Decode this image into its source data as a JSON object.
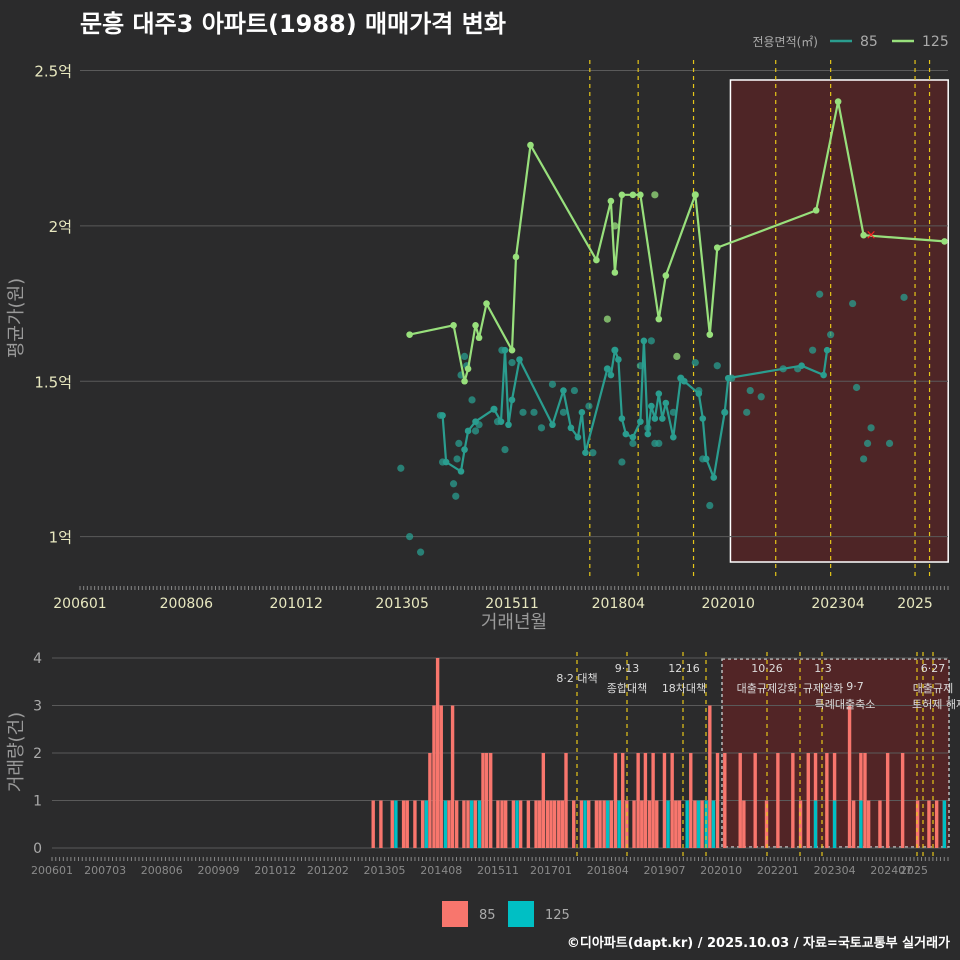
{
  "title": "문흥 대주3 아파트(1988) 매매가격 변화",
  "footer": "©디아파트(dapt.kr) / 2025.10.03 / 자료=국토교통부 실거래가",
  "colors": {
    "s85": "#2a9d8f",
    "s125": "#98e07c",
    "vol85": "#f8766d",
    "vol125": "#00bfc4",
    "policy": "#e6c619",
    "highlight": "#7a1f1f",
    "grid": "#5a5a5a",
    "bg": "#2b2b2c"
  },
  "chart_data": [
    {
      "type": "line",
      "title": "문흥 대주3 아파트(1988) 매매가격 변화",
      "xlabel": "거래년월",
      "ylabel": "평균가(원)",
      "xlim": [
        2006.0,
        2025.75
      ],
      "ylim": [
        0.87,
        2.55
      ],
      "x_ticks": [
        {
          "label": "200601",
          "x": 2006.0
        },
        {
          "label": "200806",
          "x": 2008.42
        },
        {
          "label": "201012",
          "x": 2010.92
        },
        {
          "label": "201305",
          "x": 2013.33
        },
        {
          "label": "201511",
          "x": 2015.83
        },
        {
          "label": "201804",
          "x": 2018.25
        },
        {
          "label": "202010",
          "x": 2020.75
        },
        {
          "label": "202304",
          "x": 2023.25
        },
        {
          "label": "2025",
          "x": 2025.0
        }
      ],
      "y_ticks": [
        {
          "label": "1억",
          "y": 1.0
        },
        {
          "label": "1.5억",
          "y": 1.5
        },
        {
          "label": "2억",
          "y": 2.0
        },
        {
          "label": "2.5억",
          "y": 2.5
        }
      ],
      "legend_title": "전용면적(㎡)",
      "legend": [
        "85",
        "125"
      ],
      "policy_lines": [
        2017.6,
        2018.7,
        2019.96,
        2021.83,
        2023.08,
        2025.0,
        2025.33
      ],
      "highlight_range": [
        2020.8,
        2025.8
      ],
      "marker": {
        "x": 2024.0,
        "y": 1.97,
        "symbol": "×"
      },
      "series": [
        {
          "name": "85",
          "line": [
            [
              2014.25,
              1.39
            ],
            [
              2014.33,
              1.24
            ],
            [
              2014.67,
              1.21
            ],
            [
              2014.75,
              1.28
            ],
            [
              2014.83,
              1.34
            ],
            [
              2015.0,
              1.37
            ],
            [
              2015.42,
              1.41
            ],
            [
              2015.58,
              1.37
            ],
            [
              2015.67,
              1.6
            ],
            [
              2015.75,
              1.36
            ],
            [
              2015.83,
              1.44
            ],
            [
              2016.0,
              1.57
            ],
            [
              2016.75,
              1.36
            ],
            [
              2017.0,
              1.47
            ],
            [
              2017.17,
              1.35
            ],
            [
              2017.33,
              1.32
            ],
            [
              2017.42,
              1.4
            ],
            [
              2017.5,
              1.27
            ],
            [
              2018.0,
              1.54
            ],
            [
              2018.08,
              1.52
            ],
            [
              2018.17,
              1.6
            ],
            [
              2018.25,
              1.57
            ],
            [
              2018.33,
              1.38
            ],
            [
              2018.42,
              1.33
            ],
            [
              2018.58,
              1.32
            ],
            [
              2018.75,
              1.37
            ],
            [
              2018.83,
              1.63
            ],
            [
              2018.92,
              1.33
            ],
            [
              2019.0,
              1.42
            ],
            [
              2019.08,
              1.38
            ],
            [
              2019.17,
              1.46
            ],
            [
              2019.25,
              1.38
            ],
            [
              2019.33,
              1.43
            ],
            [
              2019.5,
              1.32
            ],
            [
              2019.67,
              1.51
            ],
            [
              2019.75,
              1.5
            ],
            [
              2020.08,
              1.46
            ],
            [
              2020.17,
              1.38
            ],
            [
              2020.25,
              1.25
            ],
            [
              2020.42,
              1.19
            ],
            [
              2020.67,
              1.4
            ],
            [
              2020.75,
              1.51
            ],
            [
              2022.42,
              1.55
            ],
            [
              2022.92,
              1.52
            ],
            [
              2023.0,
              1.6
            ]
          ],
          "points": [
            [
              2013.3,
              1.22
            ],
            [
              2013.5,
              1.0
            ],
            [
              2013.75,
              0.95
            ],
            [
              2014.2,
              1.39
            ],
            [
              2014.25,
              1.24
            ],
            [
              2014.5,
              1.17
            ],
            [
              2014.55,
              1.13
            ],
            [
              2014.58,
              1.25
            ],
            [
              2014.62,
              1.3
            ],
            [
              2014.67,
              1.52
            ],
            [
              2014.75,
              1.58
            ],
            [
              2014.8,
              1.55
            ],
            [
              2014.92,
              1.44
            ],
            [
              2015.0,
              1.34
            ],
            [
              2015.08,
              1.36
            ],
            [
              2015.42,
              1.41
            ],
            [
              2015.5,
              1.37
            ],
            [
              2015.6,
              1.6
            ],
            [
              2015.67,
              1.28
            ],
            [
              2015.83,
              1.56
            ],
            [
              2016.08,
              1.4
            ],
            [
              2016.33,
              1.4
            ],
            [
              2016.5,
              1.35
            ],
            [
              2016.75,
              1.49
            ],
            [
              2017.0,
              1.4
            ],
            [
              2017.25,
              1.47
            ],
            [
              2017.58,
              1.42
            ],
            [
              2017.67,
              1.27
            ],
            [
              2018.0,
              1.54
            ],
            [
              2018.17,
              1.6
            ],
            [
              2018.33,
              1.24
            ],
            [
              2018.58,
              1.3
            ],
            [
              2018.75,
              1.55
            ],
            [
              2018.92,
              1.35
            ],
            [
              2019.0,
              1.63
            ],
            [
              2019.08,
              1.3
            ],
            [
              2019.17,
              1.3
            ],
            [
              2019.5,
              1.4
            ],
            [
              2019.67,
              1.51
            ],
            [
              2020.0,
              1.56
            ],
            [
              2020.08,
              1.47
            ],
            [
              2020.17,
              1.25
            ],
            [
              2020.33,
              1.1
            ],
            [
              2020.5,
              1.55
            ],
            [
              2020.67,
              1.4
            ],
            [
              2020.83,
              1.51
            ],
            [
              2021.17,
              1.4
            ],
            [
              2021.25,
              1.47
            ],
            [
              2021.5,
              1.45
            ],
            [
              2022.0,
              1.54
            ],
            [
              2022.33,
              1.54
            ],
            [
              2022.67,
              1.6
            ],
            [
              2022.83,
              1.78
            ],
            [
              2023.08,
              1.65
            ],
            [
              2023.58,
              1.75
            ],
            [
              2023.67,
              1.48
            ],
            [
              2023.83,
              1.25
            ],
            [
              2023.92,
              1.3
            ],
            [
              2024.0,
              1.35
            ],
            [
              2024.42,
              1.3
            ],
            [
              2024.75,
              1.77
            ]
          ]
        },
        {
          "name": "125",
          "line": [
            [
              2013.5,
              1.65
            ],
            [
              2014.5,
              1.68
            ],
            [
              2014.75,
              1.5
            ],
            [
              2014.83,
              1.54
            ],
            [
              2015.0,
              1.68
            ],
            [
              2015.08,
              1.64
            ],
            [
              2015.25,
              1.75
            ],
            [
              2015.83,
              1.6
            ],
            [
              2015.92,
              1.9
            ],
            [
              2016.25,
              2.26
            ],
            [
              2017.75,
              1.89
            ],
            [
              2018.08,
              2.08
            ],
            [
              2018.17,
              1.85
            ],
            [
              2018.33,
              2.1
            ],
            [
              2018.58,
              2.1
            ],
            [
              2018.75,
              2.1
            ],
            [
              2019.17,
              1.7
            ],
            [
              2019.33,
              1.84
            ],
            [
              2020.0,
              2.1
            ],
            [
              2020.33,
              1.65
            ],
            [
              2020.5,
              1.93
            ],
            [
              2022.75,
              2.05
            ],
            [
              2023.25,
              2.4
            ],
            [
              2023.83,
              1.97
            ],
            [
              2025.67,
              1.95
            ]
          ],
          "points": [
            [
              2018.0,
              1.7
            ],
            [
              2018.17,
              2.0
            ],
            [
              2019.08,
              2.1
            ],
            [
              2019.58,
              1.58
            ],
            [
              2020.0,
              2.1
            ]
          ]
        }
      ]
    },
    {
      "type": "bar",
      "ylabel": "거래량(건)",
      "ylim": [
        0,
        4
      ],
      "y_ticks": [
        "0",
        "1",
        "2",
        "3",
        "4"
      ],
      "x_ticks": [
        "200601",
        "200703",
        "200806",
        "200909",
        "201012",
        "201202",
        "201305",
        "201408",
        "201511",
        "201701",
        "201804",
        "201907",
        "202010",
        "202201",
        "202304",
        "202407",
        "2025"
      ],
      "legend": [
        "85",
        "125"
      ],
      "policy_annotations": [
        {
          "date": "",
          "label": "8·2 대책"
        },
        {
          "date": "9·13",
          "label": "종합대책"
        },
        {
          "date": "12·16",
          "label": "18차대책"
        },
        {
          "date": "10·26",
          "label": "대출규제강화"
        },
        {
          "date": "1·3",
          "label": "규제완화"
        },
        {
          "date": "9·7",
          "label": "특례대출축소"
        },
        {
          "date": "",
          "label": "토허제 해제"
        },
        {
          "date": "6·27",
          "label": "대출규제"
        }
      ],
      "bars85": [
        [
          2013.08,
          1
        ],
        [
          2013.25,
          1
        ],
        [
          2013.5,
          1
        ],
        [
          2013.75,
          1
        ],
        [
          2013.83,
          1
        ],
        [
          2014.0,
          1
        ],
        [
          2014.17,
          1
        ],
        [
          2014.33,
          2
        ],
        [
          2014.42,
          3
        ],
        [
          2014.5,
          4
        ],
        [
          2014.58,
          3
        ],
        [
          2014.75,
          1
        ],
        [
          2014.83,
          3
        ],
        [
          2014.92,
          1
        ],
        [
          2015.08,
          1
        ],
        [
          2015.17,
          1
        ],
        [
          2015.33,
          1
        ],
        [
          2015.5,
          2
        ],
        [
          2015.58,
          2
        ],
        [
          2015.67,
          2
        ],
        [
          2015.83,
          1
        ],
        [
          2015.92,
          1
        ],
        [
          2016.0,
          1
        ],
        [
          2016.17,
          1
        ],
        [
          2016.33,
          1
        ],
        [
          2016.5,
          1
        ],
        [
          2016.67,
          1
        ],
        [
          2016.75,
          1
        ],
        [
          2016.83,
          2
        ],
        [
          2016.92,
          1
        ],
        [
          2017.0,
          1
        ],
        [
          2017.08,
          1
        ],
        [
          2017.17,
          1
        ],
        [
          2017.25,
          1
        ],
        [
          2017.33,
          2
        ],
        [
          2017.5,
          1
        ],
        [
          2017.67,
          1
        ],
        [
          2017.83,
          1
        ],
        [
          2018.0,
          1
        ],
        [
          2018.08,
          1
        ],
        [
          2018.17,
          1
        ],
        [
          2018.25,
          1
        ],
        [
          2018.33,
          1
        ],
        [
          2018.42,
          2
        ],
        [
          2018.58,
          2
        ],
        [
          2018.67,
          1
        ],
        [
          2018.83,
          1
        ],
        [
          2018.92,
          2
        ],
        [
          2019.0,
          1
        ],
        [
          2019.08,
          2
        ],
        [
          2019.17,
          1
        ],
        [
          2019.25,
          2
        ],
        [
          2019.33,
          1
        ],
        [
          2019.5,
          2
        ],
        [
          2019.67,
          2
        ],
        [
          2019.75,
          1
        ],
        [
          2019.83,
          1
        ],
        [
          2020.08,
          2
        ],
        [
          2020.17,
          1
        ],
        [
          2020.25,
          1
        ],
        [
          2020.33,
          1
        ],
        [
          2020.5,
          3
        ],
        [
          2020.67,
          2
        ],
        [
          2020.83,
          2
        ],
        [
          2021.17,
          2
        ],
        [
          2021.25,
          1
        ],
        [
          2021.5,
          2
        ],
        [
          2021.75,
          1
        ],
        [
          2022.0,
          2
        ],
        [
          2022.33,
          2
        ],
        [
          2022.5,
          1
        ],
        [
          2022.67,
          2
        ],
        [
          2022.83,
          2
        ],
        [
          2023.08,
          2
        ],
        [
          2023.25,
          2
        ],
        [
          2023.58,
          3
        ],
        [
          2023.67,
          1
        ],
        [
          2023.83,
          2
        ],
        [
          2023.92,
          2
        ],
        [
          2024.0,
          1
        ],
        [
          2024.25,
          1
        ],
        [
          2024.42,
          2
        ],
        [
          2024.75,
          2
        ],
        [
          2025.08,
          1
        ],
        [
          2025.33,
          1
        ],
        [
          2025.5,
          1
        ],
        [
          2025.67,
          1
        ]
      ],
      "bars125": [
        [
          2013.58,
          1
        ],
        [
          2014.25,
          1
        ],
        [
          2014.67,
          1
        ],
        [
          2015.25,
          1
        ],
        [
          2015.42,
          1
        ],
        [
          2016.25,
          1
        ],
        [
          2017.75,
          1
        ],
        [
          2018.25,
          1
        ],
        [
          2018.5,
          1
        ],
        [
          2019.58,
          1
        ],
        [
          2020.0,
          1
        ],
        [
          2020.25,
          1
        ],
        [
          2020.42,
          1
        ],
        [
          2020.58,
          1
        ],
        [
          2022.83,
          1
        ],
        [
          2023.25,
          1
        ],
        [
          2023.83,
          1
        ],
        [
          2025.67,
          1
        ]
      ]
    }
  ]
}
